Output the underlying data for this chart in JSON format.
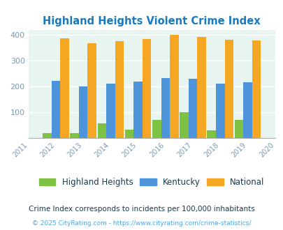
{
  "title": "Highland Heights Violent Crime Index",
  "years": [
    2011,
    2012,
    2013,
    2014,
    2015,
    2016,
    2017,
    2018,
    2019,
    2020
  ],
  "bar_years": [
    2012,
    2013,
    2014,
    2015,
    2016,
    2017,
    2018,
    2019
  ],
  "highland_heights": [
    18,
    18,
    58,
    32,
    70,
    100,
    30,
    70
  ],
  "kentucky": [
    222,
    200,
    211,
    219,
    234,
    229,
    211,
    216
  ],
  "national": [
    386,
    368,
    377,
    384,
    400,
    394,
    382,
    378
  ],
  "highland_color": "#7dc242",
  "kentucky_color": "#4d94db",
  "national_color": "#f5a623",
  "bg_color": "#e8f4f0",
  "title_color": "#1a7abf",
  "subtitle": "Crime Index corresponds to incidents per 100,000 inhabitants",
  "footnote": "© 2025 CityRating.com - https://www.cityrating.com/crime-statistics/",
  "subtitle_color": "#1a3a4a",
  "footnote_color": "#4da6e0",
  "ylim": [
    0,
    420
  ],
  "yticks": [
    100,
    200,
    300,
    400
  ],
  "bar_width": 0.32,
  "legend_labels": [
    "Highland Heights",
    "Kentucky",
    "National"
  ]
}
